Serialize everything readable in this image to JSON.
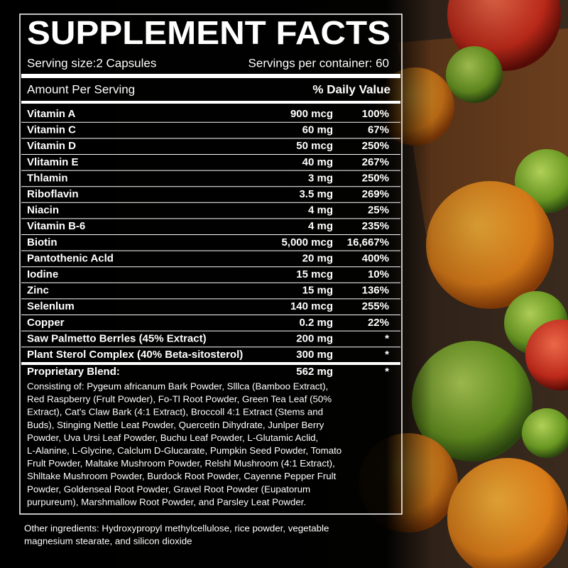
{
  "header": {
    "title": "SUPPLEMENT FACTS",
    "serving_size": "Serving size:2 Capsules",
    "servings_per_container": "Servings per container: 60"
  },
  "columns": {
    "amount_label": "Amount Per Serving",
    "dv_label": "% Daily Value"
  },
  "rows": [
    [
      "Vitamin A",
      "900 mcg",
      "100%"
    ],
    [
      "Vitamin C",
      "60 mg",
      "67%"
    ],
    [
      "Vitamin D",
      "50 mcg",
      "250%"
    ],
    [
      "Vlitamin E",
      "40 mg",
      "267%"
    ],
    [
      "Thlamin",
      "3 mg",
      "250%"
    ],
    [
      "Riboflavin",
      "3.5 mg",
      "269%"
    ],
    [
      "Niacin",
      "4 mg",
      "25%"
    ],
    [
      "Vitamin B-6",
      "4 mg",
      "235%"
    ],
    [
      "Biotin",
      "5,000 mcg",
      "16,667%"
    ],
    [
      "Pantothenic Acld",
      "20 mg",
      "400%"
    ],
    [
      "Iodine",
      "15 mcg",
      "10%"
    ],
    [
      "Zinc",
      "15 mg",
      "136%"
    ],
    [
      "Selenlum",
      "140 mcg",
      "255%"
    ],
    [
      "Copper",
      "0.2 mg",
      "22%"
    ],
    [
      "Saw Palmetto Berrles (45% Extract)",
      "200 mg",
      "*"
    ],
    [
      "Plant Sterol Complex (40% Beta-sitosterol)",
      "300 mg",
      "*"
    ]
  ],
  "blend": {
    "name": "Proprietary Blend:",
    "amount": "562 mg",
    "dv": "*",
    "lines": [
      "Consisting of: Pygeum africanum Bark Powder, Slllca (Bamboo Extract),",
      "Red Raspberry (Frult Powder), Fo-Tl Root Powder, Green Tea Leaf (50%",
      "Extract), Cat's Claw Bark (4:1 Extract), Broccoll 4:1 Extract (Stems and",
      "Buds), Stinging Nettle Leat Powder, Quercetin Dihydrate, Junlper Berry",
      "Powder, Uva Ursi Leaf Powder, Buchu Leaf Powder, L-Glutamic Aclid,",
      "L-Alanine, L-Glycine, Calclum D-Glucarate, Pumpkin Seed Powder, Tomato",
      "Frult Powder, Maltake Mushroom Powder, Relshl Mushroom (4:1 Extract),",
      "Shlltake Mushroom Powder, Burdock Root Powder, Cayenne Pepper Frult",
      "Powder, Goldenseal Root Powder, Gravel Root Powder (Eupatorum",
      "purpureum), Marshmallow Root Powder, and Parsley Leat Powder."
    ]
  },
  "other_ingredients": [
    "Other ingredients: Hydroxypropyl methylcellulose, rice powder, vegetable",
    "magnesium stearate, and silicon dioxide"
  ]
}
